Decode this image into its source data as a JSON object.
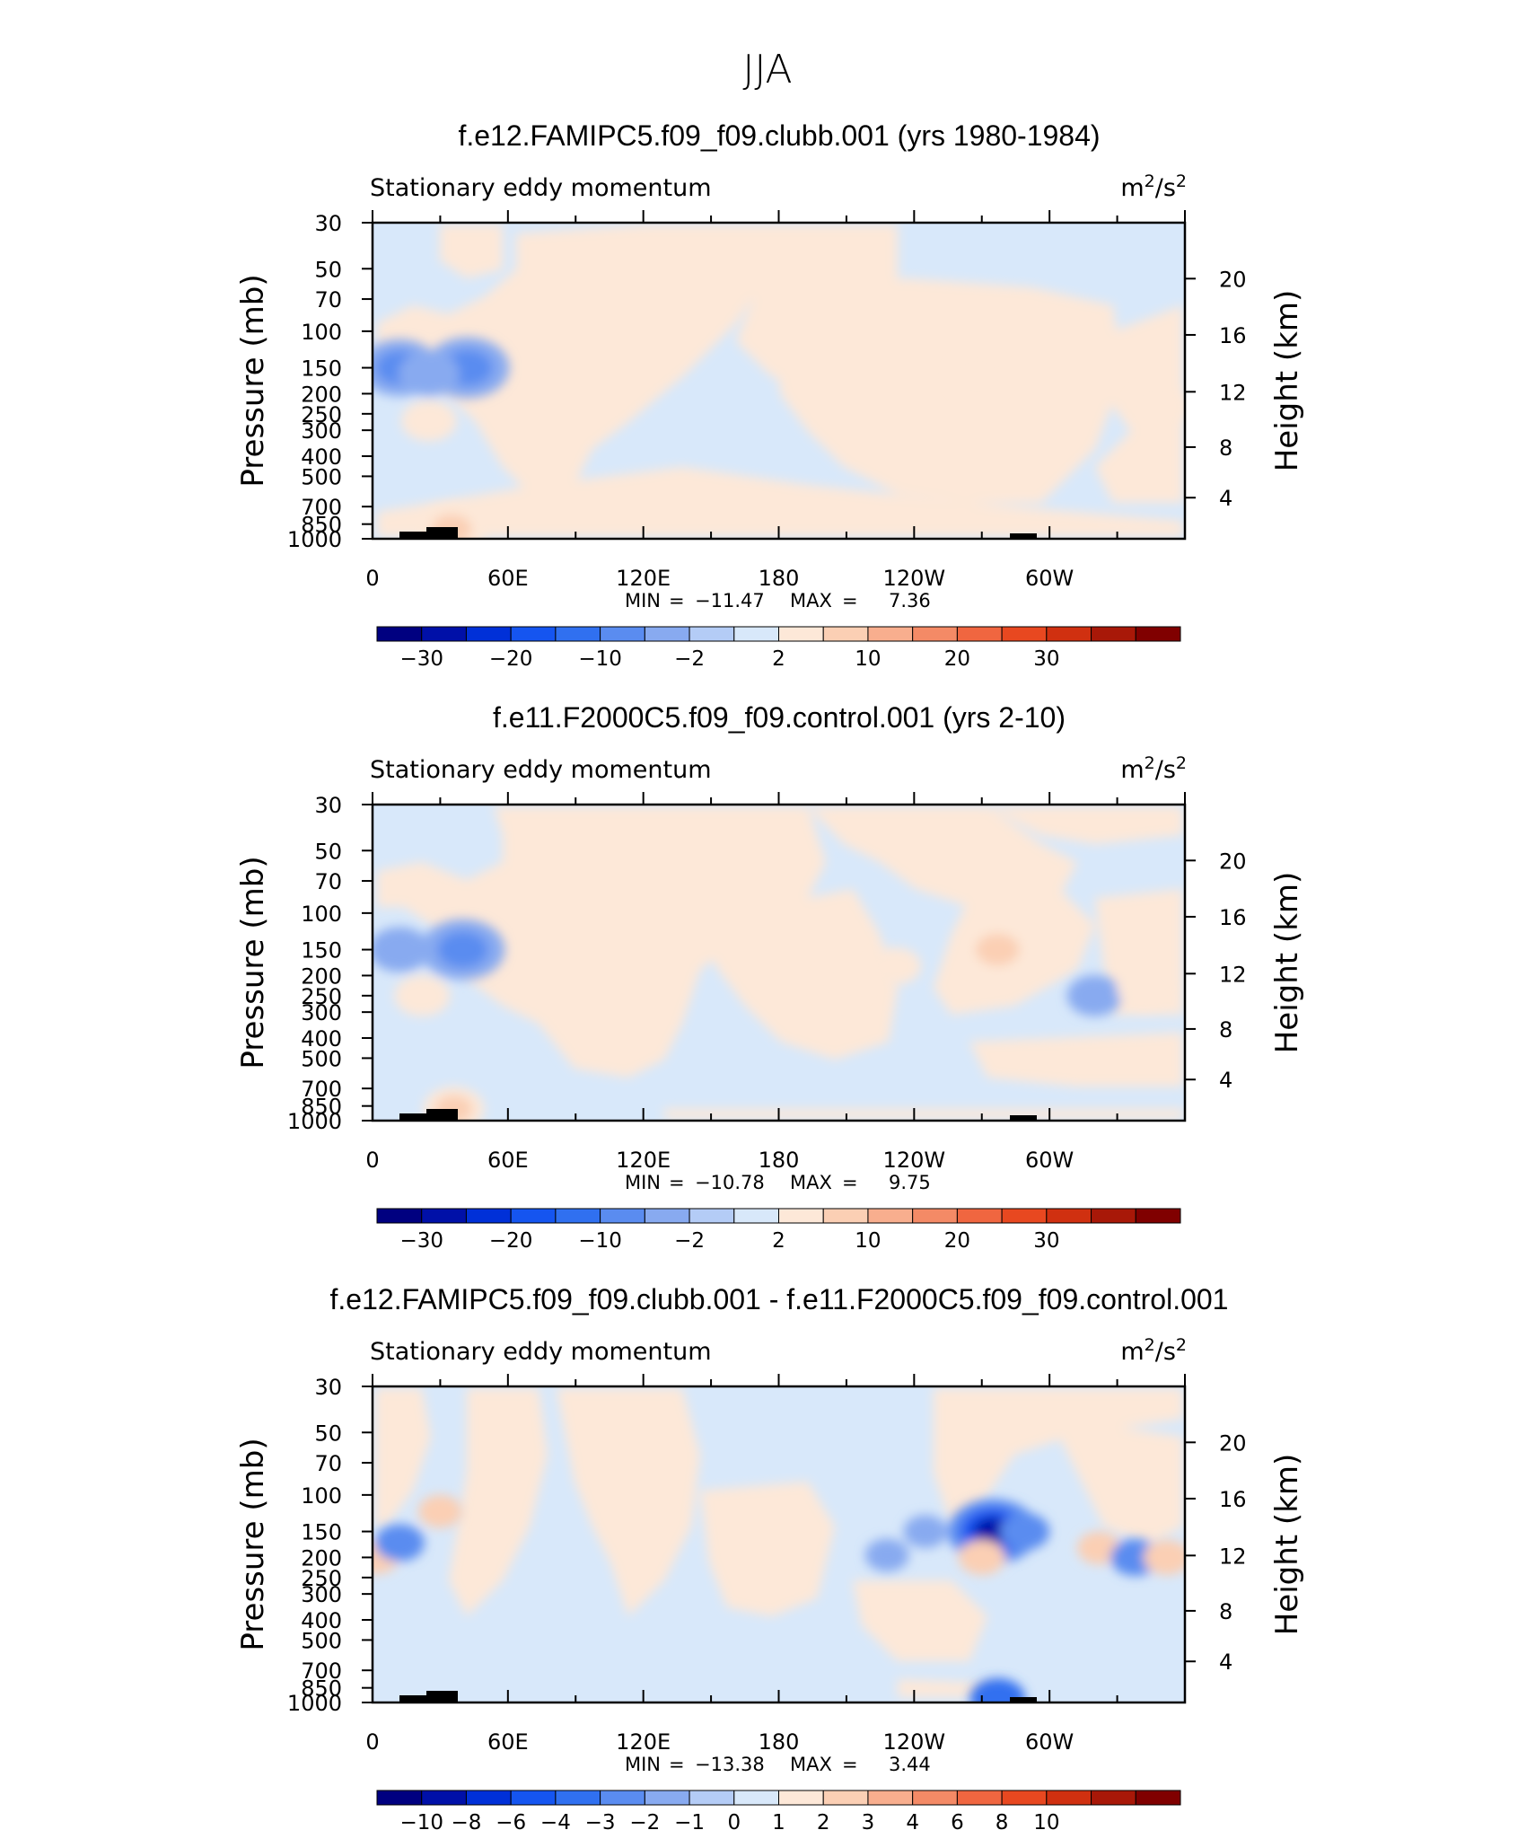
{
  "figure": {
    "title": "JJA"
  },
  "common": {
    "left_string": "Stationary eddy momentum",
    "right_string_base": "m",
    "right_string_sup1": "2",
    "right_string_mid": "/s",
    "right_string_sup2": "2",
    "y_left_title": "Pressure (mb)",
    "y_right_title": "Height (km)",
    "x_ticks": [
      "0",
      "60E",
      "120E",
      "180",
      "120W",
      "60W"
    ],
    "y_left_ticks": [
      "30",
      "50",
      "70",
      "100",
      "150",
      "200",
      "250",
      "300",
      "400",
      "500",
      "700",
      "850",
      "1000"
    ],
    "y_right_ticks": [
      "20",
      "16",
      "12",
      "8",
      "4"
    ],
    "min_label": "MIN",
    "max_label": "MAX",
    "eq": "="
  },
  "colors": {
    "blues": [
      "#000080",
      "#0010a8",
      "#0030d8",
      "#1555f0",
      "#3070f0",
      "#5a8cf0",
      "#88aaf0",
      "#b4ccf6",
      "#d8e8fa"
    ],
    "reds": [
      "#fde8d8",
      "#fbcfb4",
      "#f8ae8e",
      "#f48a66",
      "#f06640",
      "#e84820",
      "#d03010",
      "#a81808",
      "#800000"
    ],
    "topography": "#000000"
  },
  "chart_data": [
    {
      "type": "heatmap",
      "title": "f.e12.FAMIPC5.f09_f09.clubb.001 (yrs 1980-1984)",
      "min": "−11.47",
      "max": "7.36",
      "colorbar_labels": [
        "−30",
        "−20",
        "−10",
        "−2",
        "2",
        "10",
        "20",
        "30"
      ],
      "levels": [
        -35,
        -30,
        -25,
        -20,
        -15,
        -10,
        -5,
        -2,
        0,
        2,
        5,
        10,
        15,
        20,
        25,
        30,
        35
      ],
      "features": [
        {
          "lon": 12,
          "p": 150,
          "value": -8
        },
        {
          "lon": 42,
          "p": 150,
          "value": -9
        },
        {
          "lon": 25,
          "p": 160,
          "value": -5
        },
        {
          "lon": 25,
          "p": 270,
          "value": 4
        },
        {
          "lon": 35,
          "p": 900,
          "value": 6
        },
        {
          "lon": 268,
          "p": 165,
          "value": 4
        },
        {
          "lon": 348,
          "p": 230,
          "value": 4
        }
      ]
    },
    {
      "type": "heatmap",
      "title": "f.e11.F2000C5.f09_f09.control.001 (yrs 2-10)",
      "min": "−10.78",
      "max": "9.75",
      "colorbar_labels": [
        "−30",
        "−20",
        "−10",
        "−2",
        "2",
        "10",
        "20",
        "30"
      ],
      "levels": [
        -35,
        -30,
        -25,
        -20,
        -15,
        -10,
        -5,
        -2,
        0,
        2,
        5,
        10,
        15,
        20,
        25,
        30,
        35
      ],
      "features": [
        {
          "lon": 12,
          "p": 150,
          "value": -5
        },
        {
          "lon": 40,
          "p": 150,
          "value": -9
        },
        {
          "lon": 22,
          "p": 250,
          "value": 4
        },
        {
          "lon": 36,
          "p": 880,
          "value": 5
        },
        {
          "lon": 277,
          "p": 150,
          "value": 7
        },
        {
          "lon": 232,
          "p": 180,
          "value": 3
        },
        {
          "lon": 208,
          "p": 220,
          "value": 3
        },
        {
          "lon": 320,
          "p": 250,
          "value": -4
        },
        {
          "lon": 342,
          "p": 230,
          "value": 4
        }
      ]
    },
    {
      "type": "heatmap",
      "title": "f.e12.FAMIPC5.f09_f09.clubb.001 - f.e11.F2000C5.f09_f09.control.001",
      "min": "−13.38",
      "max": "3.44",
      "colorbar_labels": [
        "−10",
        "−8",
        "−6",
        "−4",
        "−3",
        "−2",
        "−1",
        "0",
        "1",
        "2",
        "3",
        "4",
        "6",
        "8",
        "10"
      ],
      "levels": [
        -12,
        -10,
        -8,
        -6,
        -4,
        -3,
        -2,
        -1,
        0,
        1,
        2,
        3,
        4,
        6,
        8,
        10,
        12
      ],
      "features": [
        {
          "lon": 2,
          "p": 200,
          "value": 2
        },
        {
          "lon": 12,
          "p": 170,
          "value": -3
        },
        {
          "lon": 30,
          "p": 120,
          "value": 2
        },
        {
          "lon": 275,
          "p": 150,
          "value": -10
        },
        {
          "lon": 270,
          "p": 200,
          "value": 2.5
        },
        {
          "lon": 289,
          "p": 150,
          "value": -3
        },
        {
          "lon": 228,
          "p": 195,
          "value": -2
        },
        {
          "lon": 245,
          "p": 150,
          "value": -2
        },
        {
          "lon": 322,
          "p": 180,
          "value": 2
        },
        {
          "lon": 338,
          "p": 200,
          "value": -3
        },
        {
          "lon": 352,
          "p": 200,
          "value": 2.5
        },
        {
          "lon": 277,
          "p": 960,
          "value": -4
        }
      ]
    }
  ]
}
